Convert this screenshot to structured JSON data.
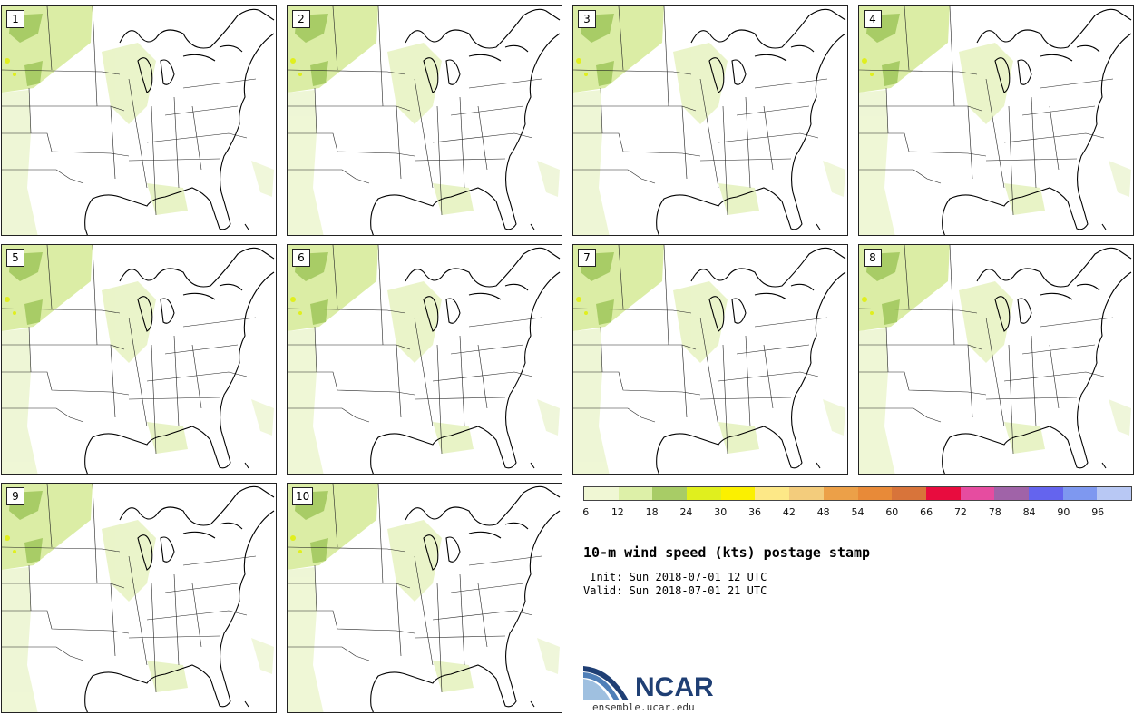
{
  "panels": [
    {
      "label": "1"
    },
    {
      "label": "2"
    },
    {
      "label": "3"
    },
    {
      "label": "4"
    },
    {
      "label": "5"
    },
    {
      "label": "6"
    },
    {
      "label": "7"
    },
    {
      "label": "8"
    },
    {
      "label": "9"
    },
    {
      "label": "10"
    }
  ],
  "colorbar": {
    "ticks": [
      "6",
      "12",
      "18",
      "24",
      "30",
      "36",
      "42",
      "48",
      "54",
      "60",
      "66",
      "72",
      "78",
      "84",
      "90",
      "96"
    ],
    "colors": [
      "#f0f7d4",
      "#ddf0a8",
      "#a8cc66",
      "#e0ef1e",
      "#fbf000",
      "#fde887",
      "#f3cc7c",
      "#eca048",
      "#e88a38",
      "#d8743a",
      "#e80c3e",
      "#e64ca0",
      "#a063a8",
      "#6464ee",
      "#7e98f0",
      "#b8c8f4"
    ]
  },
  "title": "10-m wind speed (kts) postage stamp",
  "init_text": " Init: Sun 2018-07-01 12 UTC",
  "valid_text": "Valid: Sun 2018-07-01 21 UTC",
  "logo": {
    "text": "NCAR",
    "url": "ensemble.ucar.edu"
  }
}
